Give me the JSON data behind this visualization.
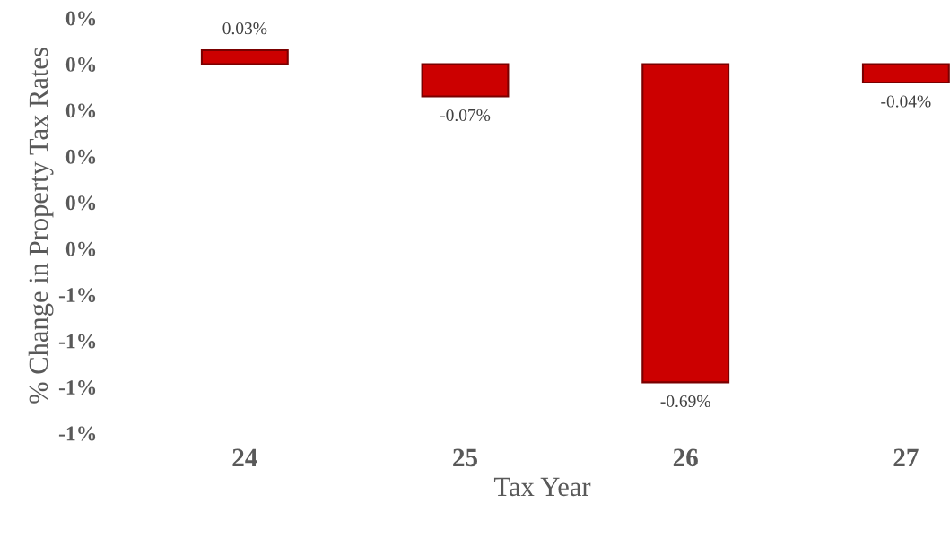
{
  "chart_data": {
    "type": "bar",
    "xlabel": "Tax Year",
    "ylabel": "% Change in Property Tax Rates",
    "categories": [
      "24",
      "25",
      "26",
      "27"
    ],
    "values": [
      0.03,
      -0.07,
      -0.69,
      -0.04
    ],
    "color": "#cc0000",
    "value_labels": [
      "0.03%",
      "-0.07%",
      "-0.69%",
      "-0.04%"
    ],
    "ylim": [
      -0.8,
      0.1
    ],
    "yticks": [
      {
        "value": 0.1,
        "label": "0%"
      },
      {
        "value": 0.0,
        "label": "0%"
      },
      {
        "value": -0.1,
        "label": "0%"
      },
      {
        "value": -0.2,
        "label": "0%"
      },
      {
        "value": -0.3,
        "label": "0%"
      },
      {
        "value": -0.4,
        "label": "0%"
      },
      {
        "value": -0.5,
        "label": "-1%"
      },
      {
        "value": -0.6,
        "label": "-1%"
      },
      {
        "value": -0.7,
        "label": "-1%"
      },
      {
        "value": -0.8,
        "label": "-1%"
      }
    ],
    "grid": false,
    "legend": false
  }
}
